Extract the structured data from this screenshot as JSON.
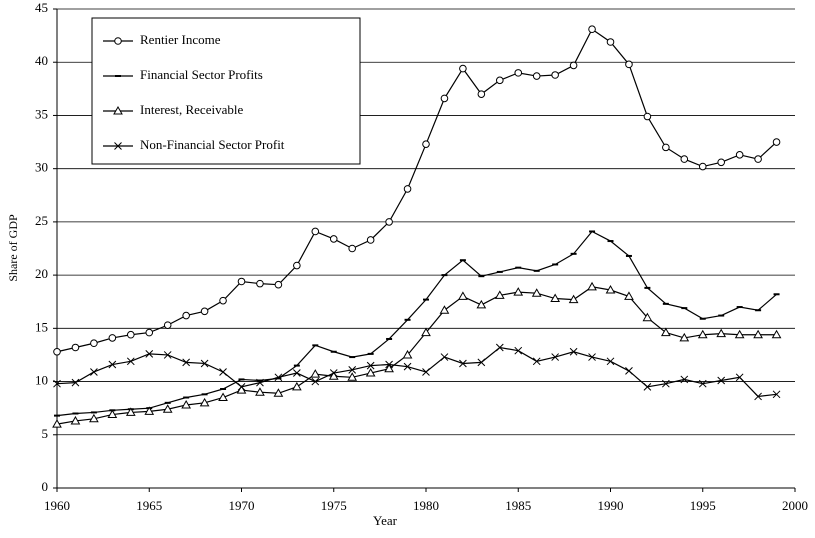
{
  "chart_data": {
    "type": "line",
    "xlabel": "Year",
    "ylabel": "Share of GDP",
    "x": [
      1960,
      1961,
      1962,
      1963,
      1964,
      1965,
      1966,
      1967,
      1968,
      1969,
      1970,
      1971,
      1972,
      1973,
      1974,
      1975,
      1976,
      1977,
      1978,
      1979,
      1980,
      1981,
      1982,
      1983,
      1984,
      1985,
      1986,
      1987,
      1988,
      1989,
      1990,
      1991,
      1992,
      1993,
      1994,
      1995,
      1996,
      1997,
      1998,
      1999
    ],
    "series": [
      {
        "name": "Rentier Income",
        "color": "#000000",
        "marker": "circle",
        "values": [
          12.8,
          13.2,
          13.6,
          14.1,
          14.4,
          14.6,
          15.3,
          16.2,
          16.6,
          17.6,
          19.4,
          19.2,
          19.1,
          20.9,
          24.1,
          23.4,
          22.5,
          23.3,
          25.0,
          28.1,
          32.3,
          36.6,
          39.4,
          37.0,
          38.3,
          39.0,
          38.7,
          38.8,
          39.7,
          43.1,
          41.9,
          39.8,
          34.9,
          32.0,
          30.9,
          30.2,
          30.6,
          31.3,
          30.9,
          32.5
        ]
      },
      {
        "name": "Financial Sector Profits",
        "color": "#000000",
        "marker": "dash",
        "values": [
          6.8,
          7.0,
          7.1,
          7.3,
          7.4,
          7.5,
          8.0,
          8.5,
          8.8,
          9.3,
          10.2,
          10.1,
          10.3,
          11.5,
          13.4,
          12.8,
          12.3,
          12.6,
          14.0,
          15.8,
          17.7,
          20.0,
          21.4,
          19.9,
          20.3,
          20.7,
          20.4,
          21.0,
          22.0,
          24.1,
          23.2,
          21.8,
          18.8,
          17.3,
          16.9,
          15.9,
          16.2,
          17.0,
          16.7,
          18.2
        ]
      },
      {
        "name": "Interest, Receivable",
        "color": "#000000",
        "marker": "triangle",
        "values": [
          6.0,
          6.3,
          6.5,
          6.9,
          7.1,
          7.2,
          7.4,
          7.8,
          8.0,
          8.5,
          9.2,
          9.0,
          8.9,
          9.5,
          10.7,
          10.5,
          10.4,
          10.8,
          11.2,
          12.5,
          14.6,
          16.7,
          18.0,
          17.2,
          18.1,
          18.4,
          18.3,
          17.8,
          17.7,
          18.9,
          18.6,
          18.0,
          16.0,
          14.6,
          14.1,
          14.4,
          14.5,
          14.4,
          14.4,
          14.4
        ]
      },
      {
        "name": "Non-Financial Sector Profit",
        "color": "#000000",
        "marker": "x",
        "values": [
          9.8,
          9.9,
          10.9,
          11.6,
          11.9,
          12.6,
          12.5,
          11.8,
          11.7,
          10.9,
          9.5,
          9.9,
          10.4,
          10.8,
          10.0,
          10.8,
          11.1,
          11.5,
          11.6,
          11.4,
          10.9,
          12.3,
          11.7,
          11.8,
          13.2,
          12.9,
          11.9,
          12.3,
          12.8,
          12.3,
          11.9,
          11.0,
          9.5,
          9.8,
          10.2,
          9.8,
          10.1,
          10.4,
          8.6,
          8.8
        ]
      }
    ],
    "xlim": [
      1960,
      2000
    ],
    "xticks": [
      1960,
      1965,
      1970,
      1975,
      1980,
      1985,
      1990,
      1995,
      2000
    ],
    "ylim": [
      0,
      45
    ],
    "yticks": [
      0,
      5,
      10,
      15,
      20,
      25,
      30,
      35,
      40,
      45
    ],
    "grid": true,
    "legend": "upper left"
  }
}
